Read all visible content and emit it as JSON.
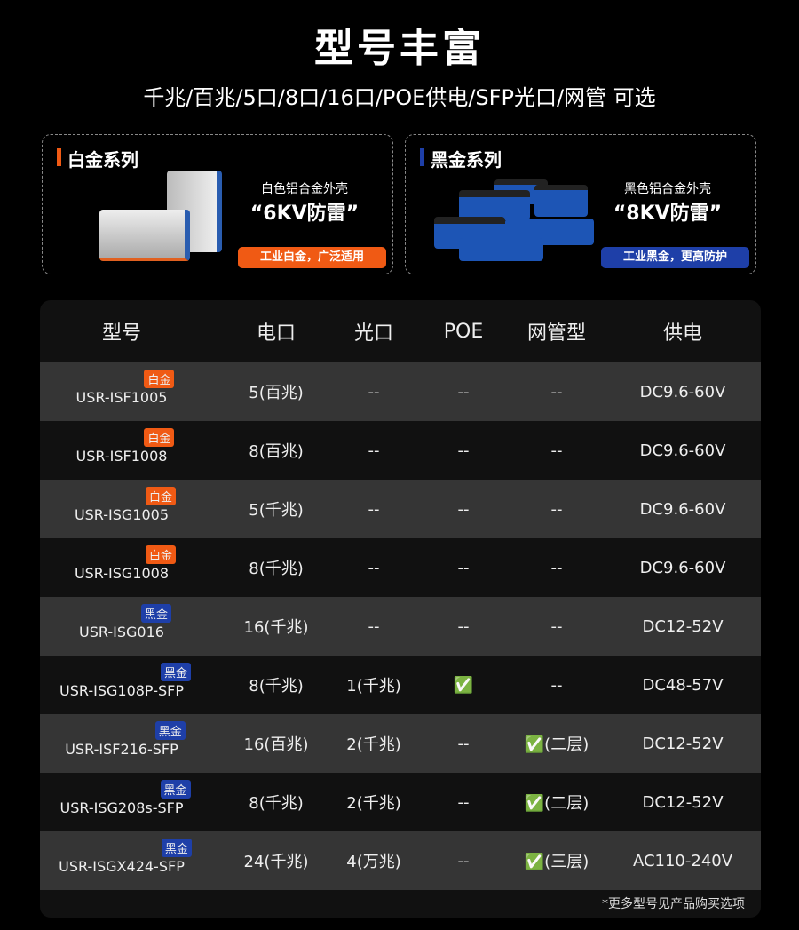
{
  "title": "型号丰富",
  "subtitle": "千兆/百兆/5口/8口/16口/POE供电/SFP光口/网管 可选",
  "colors": {
    "platinum": "#f05a14",
    "black_gold": "#1e3fa8"
  },
  "series": [
    {
      "name": "白金系列",
      "desc": "白色铝合金外壳",
      "highlight": "“6KV防雷”",
      "tag": "工业白金，广泛适用"
    },
    {
      "name": "黑金系列",
      "desc": "黑色铝合金外壳",
      "highlight": "“8KV防雷”",
      "tag": "工业黑金，更高防护"
    }
  ],
  "table": {
    "headers": [
      "型号",
      "电口",
      "光口",
      "POE",
      "网管型",
      "供电"
    ],
    "rows": [
      {
        "model": "USR-ISF1005",
        "badge": "白金",
        "type": "platinum",
        "cells": [
          "5(百兆)",
          "--",
          "--",
          "--",
          "DC9.6-60V"
        ]
      },
      {
        "model": "USR-ISF1008",
        "badge": "白金",
        "type": "platinum",
        "cells": [
          "8(百兆)",
          "--",
          "--",
          "--",
          "DC9.6-60V"
        ]
      },
      {
        "model": "USR-ISG1005",
        "badge": "白金",
        "type": "platinum",
        "cells": [
          "5(千兆)",
          "--",
          "--",
          "--",
          "DC9.6-60V"
        ]
      },
      {
        "model": "USR-ISG1008",
        "badge": "白金",
        "type": "platinum",
        "cells": [
          "8(千兆)",
          "--",
          "--",
          "--",
          "DC9.6-60V"
        ]
      },
      {
        "model": "USR-ISG016",
        "badge": "黑金",
        "type": "black",
        "cells": [
          "16(千兆)",
          "--",
          "--",
          "--",
          "DC12-52V"
        ]
      },
      {
        "model": "USR-ISG108P-SFP",
        "badge": "黑金",
        "type": "black",
        "cells": [
          "8(千兆)",
          "1(千兆)",
          "✅",
          "--",
          "DC48-57V"
        ]
      },
      {
        "model": "USR-ISF216-SFP",
        "badge": "黑金",
        "type": "black",
        "cells": [
          "16(百兆)",
          "2(千兆)",
          "--",
          "✅(二层)",
          "DC12-52V"
        ]
      },
      {
        "model": "USR-ISG208s-SFP",
        "badge": "黑金",
        "type": "black",
        "cells": [
          "8(千兆)",
          "2(千兆)",
          "--",
          "✅(二层)",
          "DC12-52V"
        ]
      },
      {
        "model": "USR-ISGX424-SFP",
        "badge": "黑金",
        "type": "black",
        "cells": [
          "24(千兆)",
          "4(万兆)",
          "--",
          "✅(三层)",
          "AC110-240V"
        ]
      }
    ],
    "note": "*更多型号见产品购买选项"
  }
}
